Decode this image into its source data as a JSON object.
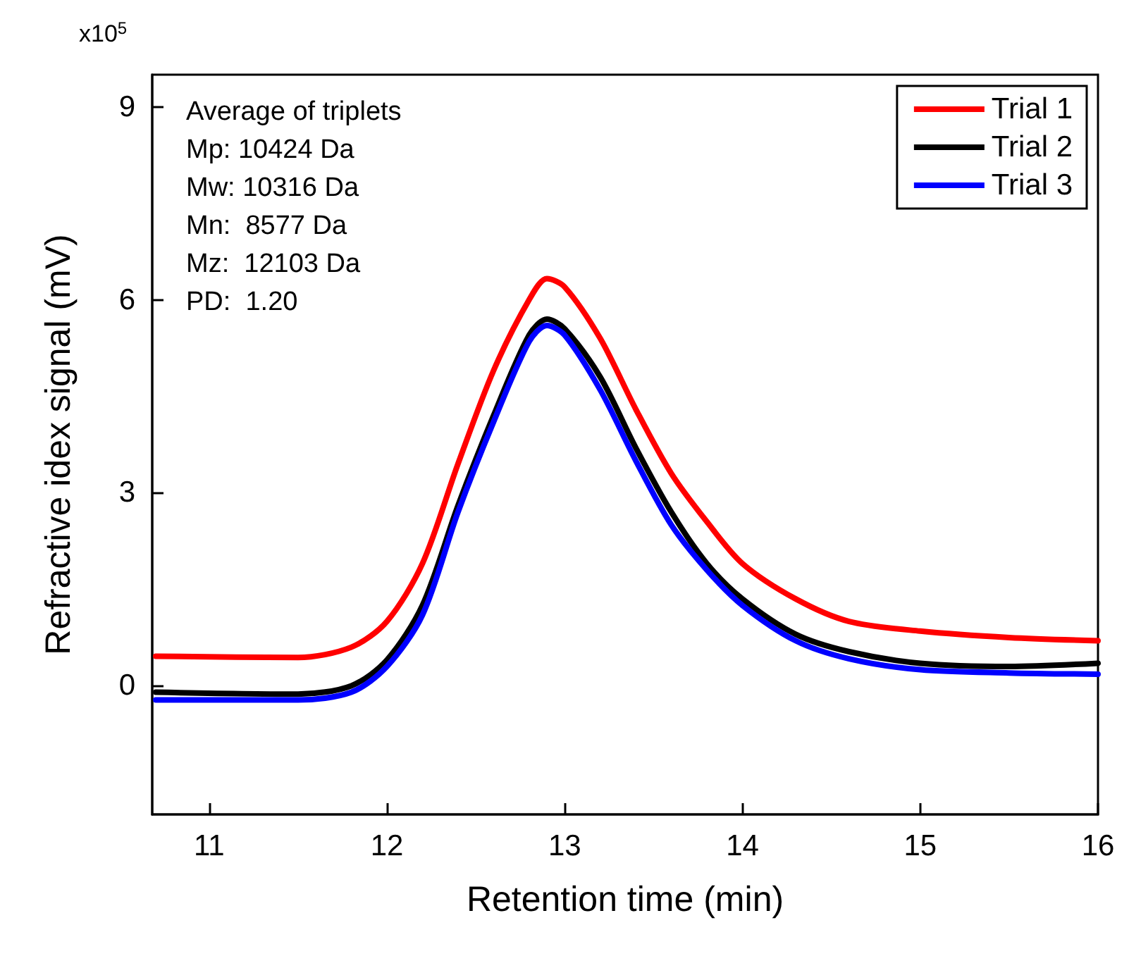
{
  "chart_data": {
    "type": "line",
    "xlabel": "Retention time (min)",
    "ylabel": "Refractive idex signal (mV)",
    "annotations": [
      "x10$^{5}$",
      "Average of triplets",
      "Mp: 10424 Da",
      "Mw: 10316 Da",
      "Mn:  8577 Da",
      "Mz:  12103 Da",
      "PD:  1.20"
    ],
    "x": [
      10.7,
      11.5,
      11.8,
      12.0,
      12.2,
      12.4,
      12.6,
      12.8,
      12.9,
      13.0,
      13.2,
      13.4,
      13.6,
      13.8,
      14.0,
      14.3,
      14.6,
      15.0,
      15.5,
      16.0
    ],
    "series": [
      {
        "name": "Trial 1",
        "color": "#ff0000",
        "values": [
          0.46,
          0.44,
          0.6,
          1.0,
          1.9,
          3.45,
          4.9,
          6.0,
          6.33,
          6.2,
          5.4,
          4.3,
          3.3,
          2.55,
          1.9,
          1.35,
          1.0,
          0.85,
          0.75,
          0.7
        ]
      },
      {
        "name": "Trial 2",
        "color": "#000000",
        "values": [
          -0.1,
          -0.13,
          0.0,
          0.4,
          1.25,
          2.8,
          4.2,
          5.45,
          5.7,
          5.55,
          4.8,
          3.7,
          2.7,
          1.9,
          1.35,
          0.8,
          0.53,
          0.35,
          0.3,
          0.35
        ]
      },
      {
        "name": "Trial 3",
        "color": "#0000ff",
        "values": [
          -0.22,
          -0.22,
          -0.1,
          0.3,
          1.1,
          2.7,
          4.1,
          5.35,
          5.6,
          5.45,
          4.6,
          3.5,
          2.5,
          1.8,
          1.25,
          0.7,
          0.42,
          0.25,
          0.2,
          0.18
        ]
      }
    ],
    "xlim": [
      10.68,
      16
    ],
    "xticks": [
      11,
      12,
      13,
      14,
      15,
      16
    ],
    "ylim": [
      -2,
      9.5
    ],
    "yticks": [
      0,
      3,
      6,
      9
    ],
    "grid": false,
    "legend": "top right",
    "marker": "none",
    "line_style": "solid"
  }
}
